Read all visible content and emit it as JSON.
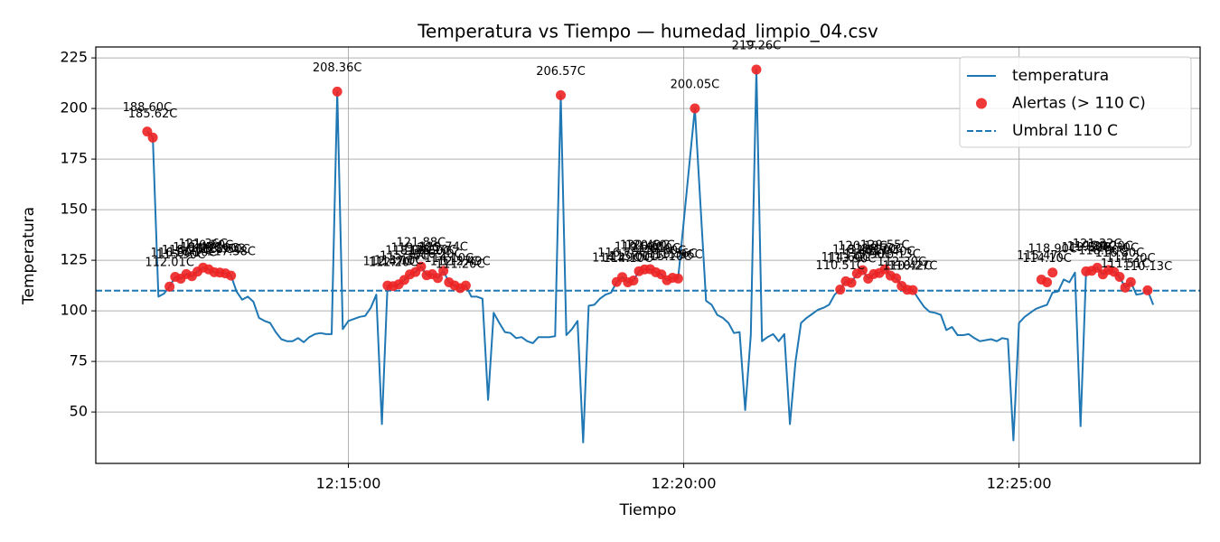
{
  "chart_data": {
    "type": "line",
    "title": "Temperatura vs Tiempo — humedad_limpio_04.csv",
    "x_label": "Tiempo",
    "y_label": "Temperatura",
    "xlim": [
      "12:11:14",
      "12:27:42"
    ],
    "xticks": [
      "12:15:00",
      "12:20:00",
      "12:25:00"
    ],
    "ylim": [
      24.6,
      230.4
    ],
    "yticks": [
      50,
      75,
      100,
      125,
      150,
      175,
      200,
      225
    ],
    "grid": true,
    "legend": "upper right",
    "series": [
      {
        "name": "temperatura",
        "type": "line",
        "color": "#1f77b4",
        "x": [
          "12:12:00",
          "12:12:05",
          "12:12:10",
          "12:12:15",
          "12:12:20",
          "12:12:25",
          "12:12:30",
          "12:12:35",
          "12:12:40",
          "12:12:45",
          "12:12:50",
          "12:12:55",
          "12:13:00",
          "12:13:05",
          "12:13:10",
          "12:13:15",
          "12:13:20",
          "12:13:25",
          "12:13:30",
          "12:13:35",
          "12:13:40",
          "12:13:45",
          "12:13:50",
          "12:13:55",
          "12:14:00",
          "12:14:05",
          "12:14:10",
          "12:14:15",
          "12:14:20",
          "12:14:25",
          "12:14:30",
          "12:14:35",
          "12:14:40",
          "12:14:45",
          "12:14:50",
          "12:14:55",
          "12:15:00",
          "12:15:05",
          "12:15:10",
          "12:15:15",
          "12:15:20",
          "12:15:25",
          "12:15:30",
          "12:15:35",
          "12:15:40",
          "12:15:45",
          "12:15:50",
          "12:15:55",
          "12:16:00",
          "12:16:05",
          "12:16:10",
          "12:16:15",
          "12:16:20",
          "12:16:25",
          "12:16:30",
          "12:16:35",
          "12:16:40",
          "12:16:45",
          "12:16:50",
          "12:16:55",
          "12:17:00",
          "12:17:05",
          "12:17:10",
          "12:17:15",
          "12:17:20",
          "12:17:25",
          "12:17:30",
          "12:17:35",
          "12:17:40",
          "12:17:45",
          "12:17:50",
          "12:17:55",
          "12:18:00",
          "12:18:05",
          "12:18:10",
          "12:18:15",
          "12:18:20",
          "12:18:25",
          "12:18:30",
          "12:18:35",
          "12:18:40",
          "12:18:45",
          "12:18:50",
          "12:18:55",
          "12:19:00",
          "12:19:05",
          "12:19:10",
          "12:19:15",
          "12:19:20",
          "12:19:25",
          "12:19:30",
          "12:19:35",
          "12:19:40",
          "12:19:45",
          "12:19:50",
          "12:19:55",
          "12:20:10",
          "12:20:20",
          "12:20:25",
          "12:20:30",
          "12:20:35",
          "12:20:40",
          "12:20:45",
          "12:20:50",
          "12:20:55",
          "12:21:00",
          "12:21:05",
          "12:21:10",
          "12:21:15",
          "12:21:20",
          "12:21:25",
          "12:21:30",
          "12:21:35",
          "12:21:40",
          "12:21:45",
          "12:21:50",
          "12:21:55",
          "12:22:00",
          "12:22:05",
          "12:22:10",
          "12:22:15",
          "12:22:20",
          "12:22:25",
          "12:22:30",
          "12:22:35",
          "12:22:40",
          "12:22:45",
          "12:22:50",
          "12:22:55",
          "12:23:00",
          "12:23:05",
          "12:23:10",
          "12:23:15",
          "12:23:20",
          "12:23:25",
          "12:23:30",
          "12:23:35",
          "12:23:40",
          "12:23:45",
          "12:23:50",
          "12:23:55",
          "12:24:00",
          "12:24:05",
          "12:24:10",
          "12:24:15",
          "12:24:20",
          "12:24:25",
          "12:24:30",
          "12:24:35",
          "12:24:40",
          "12:24:45",
          "12:24:50",
          "12:24:55",
          "12:25:00",
          "12:25:05",
          "12:25:10",
          "12:25:15",
          "12:25:20",
          "12:25:25",
          "12:25:30",
          "12:25:35",
          "12:25:40",
          "12:25:45",
          "12:25:50",
          "12:25:55",
          "12:26:00",
          "12:26:05",
          "12:26:10",
          "12:26:15",
          "12:26:20",
          "12:26:25",
          "12:26:30",
          "12:26:35",
          "12:26:40",
          "12:26:45",
          "12:26:50",
          "12:26:55",
          "12:27:00"
        ],
        "values": [
          188.6,
          185.62,
          107,
          108.5,
          112.01,
          116.8,
          115.9,
          118.2,
          117.1,
          119.4,
          121.36,
          120.5,
          119.1,
          118.9,
          118.5,
          117.38,
          109.5,
          105.5,
          107,
          104.5,
          96.5,
          95,
          94,
          89.5,
          86,
          85,
          85,
          86.5,
          84.5,
          87,
          88.5,
          89,
          88.5,
          88.5,
          208.36,
          91,
          95,
          96,
          97,
          97.5,
          101.5,
          108,
          44,
          112.47,
          112.2,
          113.1,
          115.3,
          118.0,
          119.2,
          121.88,
          117.6,
          118.1,
          116.2,
          119.74,
          114.1,
          112.57,
          111.2,
          112.49,
          107,
          107,
          106,
          56,
          99,
          94,
          89.5,
          89,
          86.5,
          87,
          85,
          84,
          87,
          87,
          87,
          87.5,
          206.57,
          88,
          91,
          95,
          35,
          102.5,
          103,
          106,
          108,
          109,
          114.29,
          116.7,
          114.1,
          115.0,
          119.6,
          120.49,
          120.6,
          119.1,
          118.0,
          115.1,
          116.36,
          115.96,
          200.05,
          105,
          103,
          98,
          96.5,
          94,
          89,
          89.5,
          51,
          88,
          219.26,
          85,
          87,
          88.5,
          85,
          88.5,
          44,
          75,
          94,
          96.5,
          98.5,
          100.5,
          101.5,
          103,
          108,
          110.51,
          114.6,
          113.9,
          118.4,
          120.1,
          115.9,
          118.2,
          118.7,
          120.55,
          117.4,
          116.13,
          112.3,
          110.42,
          110.27,
          106,
          102,
          99.5,
          99,
          98,
          90.5,
          92,
          88,
          88,
          88.5,
          86.5,
          85,
          85.5,
          86,
          85,
          86.5,
          86,
          36,
          94,
          97,
          99,
          101,
          102,
          103,
          109,
          109.6,
          115.47,
          114.1,
          118.9,
          43,
          119.5,
          119.8,
          121.32,
          118.0,
          120.2,
          119.3,
          116.8,
          111.51,
          114.2,
          108,
          108.5,
          110.13,
          103
        ]
      },
      {
        "name": "Alertas (> 110 C)",
        "type": "scatter",
        "color": "#ee2222",
        "x": [
          "12:12:00",
          "12:12:05",
          "12:12:20",
          "12:12:25",
          "12:12:30",
          "12:12:35",
          "12:12:40",
          "12:12:45",
          "12:12:50",
          "12:12:55",
          "12:13:00",
          "12:13:05",
          "12:13:10",
          "12:13:15",
          "12:14:50",
          "12:15:35",
          "12:15:40",
          "12:15:45",
          "12:15:50",
          "12:15:55",
          "12:16:00",
          "12:16:05",
          "12:16:10",
          "12:16:15",
          "12:16:20",
          "12:16:25",
          "12:16:30",
          "12:16:35",
          "12:16:40",
          "12:16:45",
          "12:18:10",
          "12:19:00",
          "12:19:05",
          "12:19:10",
          "12:19:15",
          "12:19:20",
          "12:19:25",
          "12:19:30",
          "12:19:35",
          "12:19:40",
          "12:19:45",
          "12:19:50",
          "12:19:55",
          "12:20:10",
          "12:21:05",
          "12:22:20",
          "12:22:25",
          "12:22:30",
          "12:22:35",
          "12:22:40",
          "12:22:45",
          "12:22:50",
          "12:22:55",
          "12:23:00",
          "12:23:05",
          "12:23:10",
          "12:23:15",
          "12:23:20",
          "12:23:25",
          "12:25:20",
          "12:25:25",
          "12:25:30",
          "12:26:00",
          "12:26:05",
          "12:26:10",
          "12:26:15",
          "12:26:20",
          "12:26:25",
          "12:26:30",
          "12:26:35",
          "12:26:40",
          "12:26:55"
        ],
        "values": [
          188.6,
          185.62,
          112.01,
          116.8,
          115.9,
          118.2,
          117.1,
          119.4,
          121.36,
          120.5,
          119.1,
          118.9,
          118.5,
          117.38,
          208.36,
          112.47,
          112.2,
          113.1,
          115.3,
          118.0,
          119.2,
          121.88,
          117.6,
          118.1,
          116.2,
          119.74,
          114.1,
          112.57,
          111.2,
          112.49,
          206.57,
          114.29,
          116.7,
          114.1,
          115.0,
          119.6,
          120.49,
          120.6,
          119.1,
          118.0,
          115.1,
          116.36,
          115.96,
          200.05,
          219.26,
          110.51,
          114.6,
          113.9,
          118.4,
          120.1,
          115.9,
          118.2,
          118.7,
          120.55,
          117.4,
          116.13,
          112.3,
          110.42,
          110.27,
          115.47,
          114.1,
          118.9,
          119.5,
          119.8,
          121.32,
          118.0,
          120.2,
          119.3,
          116.8,
          111.51,
          114.2,
          110.13
        ],
        "value_labels": [
          "188.60C",
          "185.62C",
          "112.01C",
          "116.80C",
          "115.90C",
          "118.20C",
          "117.10C",
          "119.40C",
          "121.36C",
          "120.50C",
          "119.10C",
          "118.90C",
          "118.50C",
          "117.38C",
          "208.36C",
          "112.47C",
          "112.20C",
          "113.10C",
          "115.30C",
          "118.00C",
          "119.20C",
          "121.88C",
          "117.60C",
          "118.10C",
          "116.20C",
          "119.74C",
          "114.10C",
          "112.57C",
          "111.20C",
          "112.49C",
          "206.57C",
          "114.29C",
          "116.70C",
          "114.10C",
          "115.00C",
          "119.60C",
          "120.49C",
          "120.60C",
          "119.10C",
          "118.00C",
          "115.10C",
          "116.36C",
          "115.96C",
          "200.05C",
          "219.26C",
          "110.51C",
          "114.60C",
          "113.90C",
          "118.40C",
          "120.10C",
          "115.90C",
          "118.20C",
          "118.70C",
          "120.55C",
          "117.40C",
          "116.13C",
          "112.30C",
          "110.42C",
          "110.27C",
          "115.47C",
          "114.10C",
          "118.90C",
          "119.50C",
          "119.80C",
          "121.32C",
          "118.00C",
          "120.20C",
          "119.30C",
          "116.80C",
          "111.51C",
          "114.20C",
          "110.13C"
        ]
      }
    ],
    "threshold": {
      "name": "Umbral 110 C",
      "value": 110,
      "color": "#1f77b4"
    }
  }
}
